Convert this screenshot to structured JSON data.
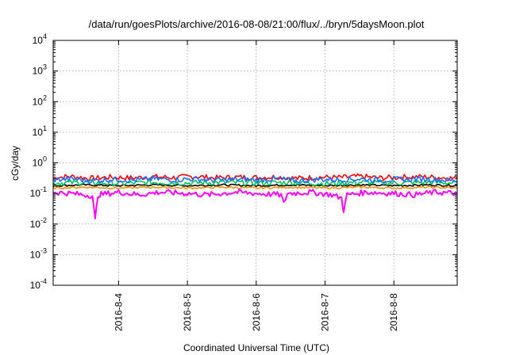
{
  "chart_data": {
    "type": "line",
    "title": "/data/run/goesPlots/archive/2016-08-08/21:00/flux/../bryn/5daysMoon.plot",
    "xlabel": "Coordinated Universal Time (UTC)",
    "ylabel": "cGy/day",
    "y_scale": "log",
    "ylim": [
      0.0001,
      10000
    ],
    "xlim": [
      3.05,
      8.92
    ],
    "x_ticks": [
      {
        "value": 4,
        "label": "2016-8-4"
      },
      {
        "value": 5,
        "label": "2016-8-5"
      },
      {
        "value": 6,
        "label": "2016-8-6"
      },
      {
        "value": 7,
        "label": "2016-8-7"
      },
      {
        "value": 8,
        "label": "2016-8-8"
      }
    ],
    "y_ticks": [
      {
        "value": 0.0001,
        "base": "10",
        "exp": "-4"
      },
      {
        "value": 0.001,
        "base": "10",
        "exp": "-3"
      },
      {
        "value": 0.01,
        "base": "10",
        "exp": "-2"
      },
      {
        "value": 0.1,
        "base": "10",
        "exp": "-1"
      },
      {
        "value": 1,
        "base": "10",
        "exp": "0"
      },
      {
        "value": 10,
        "base": "10",
        "exp": "1"
      },
      {
        "value": 100,
        "base": "10",
        "exp": "2"
      },
      {
        "value": 1000,
        "base": "10",
        "exp": "3"
      },
      {
        "value": 10000,
        "base": "10",
        "exp": "4"
      }
    ],
    "grid": true,
    "series": [
      {
        "color": "#ff0000",
        "level": 0.33,
        "points": [
          [
            3.05,
            0.33
          ],
          [
            3.3,
            0.36
          ],
          [
            3.6,
            0.31
          ],
          [
            3.9,
            0.34
          ],
          [
            4.2,
            0.32
          ],
          [
            4.5,
            0.35
          ],
          [
            4.8,
            0.33
          ],
          [
            5.1,
            0.36
          ],
          [
            5.4,
            0.32
          ],
          [
            5.7,
            0.34
          ],
          [
            6.0,
            0.33
          ],
          [
            6.3,
            0.35
          ],
          [
            6.6,
            0.31
          ],
          [
            6.9,
            0.34
          ],
          [
            7.2,
            0.33
          ],
          [
            7.5,
            0.36
          ],
          [
            7.8,
            0.32
          ],
          [
            8.1,
            0.34
          ],
          [
            8.4,
            0.35
          ],
          [
            8.7,
            0.33
          ],
          [
            8.92,
            0.31
          ]
        ]
      },
      {
        "color": "#000000",
        "level": 0.18,
        "points": [
          [
            3.05,
            0.18
          ],
          [
            3.5,
            0.19
          ],
          [
            4.0,
            0.18
          ],
          [
            4.5,
            0.19
          ],
          [
            5.0,
            0.18
          ],
          [
            5.5,
            0.19
          ],
          [
            6.0,
            0.18
          ],
          [
            6.5,
            0.19
          ],
          [
            7.0,
            0.18
          ],
          [
            7.5,
            0.19
          ],
          [
            8.0,
            0.18
          ],
          [
            8.5,
            0.19
          ],
          [
            8.92,
            0.18
          ]
        ]
      },
      {
        "color": "#00c060",
        "level": 0.22,
        "points": [
          [
            3.05,
            0.22
          ],
          [
            3.5,
            0.23
          ],
          [
            4.0,
            0.21
          ],
          [
            4.5,
            0.23
          ],
          [
            5.0,
            0.22
          ],
          [
            5.5,
            0.23
          ],
          [
            6.0,
            0.22
          ],
          [
            6.5,
            0.23
          ],
          [
            7.0,
            0.21
          ],
          [
            7.5,
            0.23
          ],
          [
            8.0,
            0.22
          ],
          [
            8.5,
            0.23
          ],
          [
            8.92,
            0.22
          ]
        ]
      },
      {
        "color": "#ff8c00",
        "level": 0.15,
        "points": [
          [
            3.05,
            0.15
          ],
          [
            3.5,
            0.16
          ],
          [
            4.0,
            0.15
          ],
          [
            4.5,
            0.16
          ],
          [
            5.0,
            0.15
          ],
          [
            5.5,
            0.16
          ],
          [
            6.0,
            0.15
          ],
          [
            6.5,
            0.16
          ],
          [
            7.0,
            0.15
          ],
          [
            7.5,
            0.16
          ],
          [
            8.0,
            0.15
          ],
          [
            8.5,
            0.16
          ],
          [
            8.92,
            0.15
          ]
        ]
      },
      {
        "color": "#1e6fff",
        "level": 0.28,
        "points": [
          [
            3.05,
            0.28
          ],
          [
            3.3,
            0.3
          ],
          [
            3.6,
            0.26
          ],
          [
            3.9,
            0.29
          ],
          [
            4.2,
            0.27
          ],
          [
            4.5,
            0.3
          ],
          [
            4.8,
            0.28
          ],
          [
            5.1,
            0.3
          ],
          [
            5.4,
            0.27
          ],
          [
            5.7,
            0.29
          ],
          [
            6.0,
            0.28
          ],
          [
            6.3,
            0.3
          ],
          [
            6.6,
            0.26
          ],
          [
            6.9,
            0.29
          ],
          [
            7.2,
            0.28
          ],
          [
            7.5,
            0.3
          ],
          [
            7.8,
            0.27
          ],
          [
            8.1,
            0.29
          ],
          [
            8.4,
            0.3
          ],
          [
            8.7,
            0.28
          ],
          [
            8.92,
            0.26
          ]
        ]
      },
      {
        "color": "#ff00ff",
        "level": 0.11,
        "points": [
          [
            3.05,
            0.11
          ],
          [
            3.3,
            0.1
          ],
          [
            3.62,
            0.085
          ],
          [
            3.66,
            0.013
          ],
          [
            3.7,
            0.09
          ],
          [
            4.0,
            0.11
          ],
          [
            4.3,
            0.09
          ],
          [
            4.6,
            0.11
          ],
          [
            5.0,
            0.1
          ],
          [
            5.3,
            0.09
          ],
          [
            5.7,
            0.11
          ],
          [
            6.0,
            0.1
          ],
          [
            6.36,
            0.09
          ],
          [
            6.4,
            0.045
          ],
          [
            6.45,
            0.1
          ],
          [
            6.8,
            0.11
          ],
          [
            7.1,
            0.09
          ],
          [
            7.24,
            0.07
          ],
          [
            7.27,
            0.028
          ],
          [
            7.32,
            0.09
          ],
          [
            7.6,
            0.11
          ],
          [
            8.0,
            0.1
          ],
          [
            8.3,
            0.09
          ],
          [
            8.6,
            0.11
          ],
          [
            8.92,
            0.1
          ]
        ]
      }
    ]
  }
}
